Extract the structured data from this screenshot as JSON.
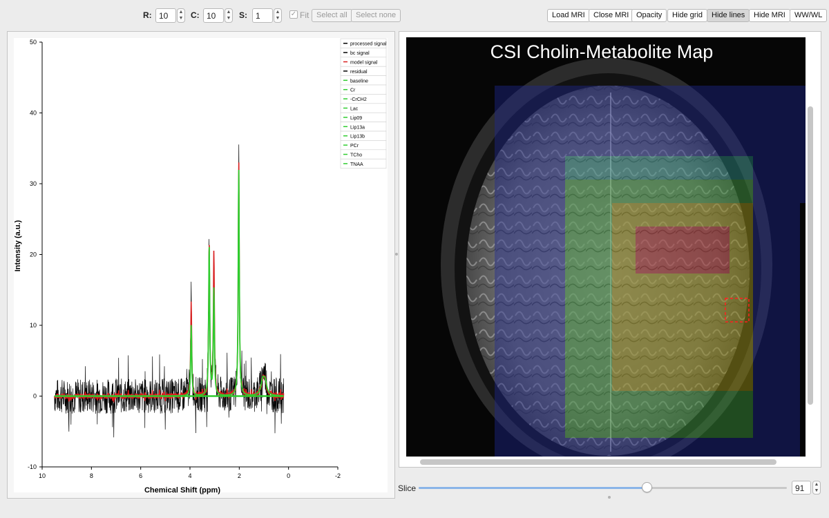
{
  "toolbar": {
    "r_label": "R:",
    "r_value": "10",
    "c_label": "C:",
    "c_value": "10",
    "s_label": "S:",
    "s_value": "1",
    "fit_label": "Fit",
    "fit_checked": true,
    "select_all_label": "Select all",
    "select_none_label": "Select none",
    "buttons": [
      "Load MRI",
      "Close MRI",
      "Opacity",
      "Hide grid",
      "Hide lines",
      "Hide MRI",
      "WW/WL"
    ],
    "pressed_button": "Hide lines"
  },
  "spectrum": {
    "chart_data": {
      "type": "line",
      "xlabel": "Chemical Shift (ppm)",
      "ylabel": "Intensity (a.u.)",
      "xlim": [
        10,
        -2
      ],
      "ylim": [
        -10,
        50
      ],
      "x_ticks": [
        10,
        8,
        6,
        4,
        2,
        0,
        -2
      ],
      "y_ticks": [
        -10,
        0,
        10,
        20,
        30,
        40,
        50
      ],
      "grid": false,
      "legend_position": "top-right",
      "legend": [
        {
          "label": "processed signal",
          "color": "#000000"
        },
        {
          "label": "bc signal",
          "color": "#000000"
        },
        {
          "label": "model signal",
          "color": "#d81e1e"
        },
        {
          "label": "residual",
          "color": "#000000"
        },
        {
          "label": "baseline",
          "color": "#2ecc2e"
        },
        {
          "label": "Cr",
          "color": "#2ecc2e"
        },
        {
          "label": "-CrCH2",
          "color": "#2ecc2e"
        },
        {
          "label": "Lac",
          "color": "#2ecc2e"
        },
        {
          "label": "Lip09",
          "color": "#2ecc2e"
        },
        {
          "label": "Lip13a",
          "color": "#2ecc2e"
        },
        {
          "label": "Lip13b",
          "color": "#2ecc2e"
        },
        {
          "label": "PCr",
          "color": "#2ecc2e"
        },
        {
          "label": "TCho",
          "color": "#2ecc2e"
        },
        {
          "label": "TNAA",
          "color": "#2ecc2e"
        }
      ],
      "x_range_data": [
        9.5,
        0.2
      ],
      "noise_amplitude": 2.5,
      "peaks": [
        {
          "ppm": 3.95,
          "processed": 14.0,
          "model": 13.0,
          "fit": 10.0
        },
        {
          "ppm": 3.22,
          "processed": 21.8,
          "model": 21.5,
          "fit": 21.0
        },
        {
          "ppm": 3.03,
          "processed": 20.5,
          "model": 20.5,
          "fit": 15.0
        },
        {
          "ppm": 2.02,
          "processed": 35.3,
          "model": 33.0,
          "fit": 32.0
        },
        {
          "ppm": 1.05,
          "processed": 2.5,
          "model": 2.0,
          "fit": 2.0
        },
        {
          "ppm": 0.95,
          "processed": 2.0,
          "model": 1.8,
          "fit": 1.8
        }
      ]
    }
  },
  "mri": {
    "title": "CSI Cholin-Metabolite Map",
    "selected_voxel": {
      "row": 10,
      "col": 10
    }
  },
  "slice": {
    "label": "Slice",
    "value": "91",
    "position_fraction": 0.62
  },
  "colors": {
    "accent": "#8ab4e8",
    "signal_black": "#000000",
    "model_red": "#d81e1e",
    "fit_green": "#2ecc2e",
    "voxel_selection": "#ff2020"
  }
}
